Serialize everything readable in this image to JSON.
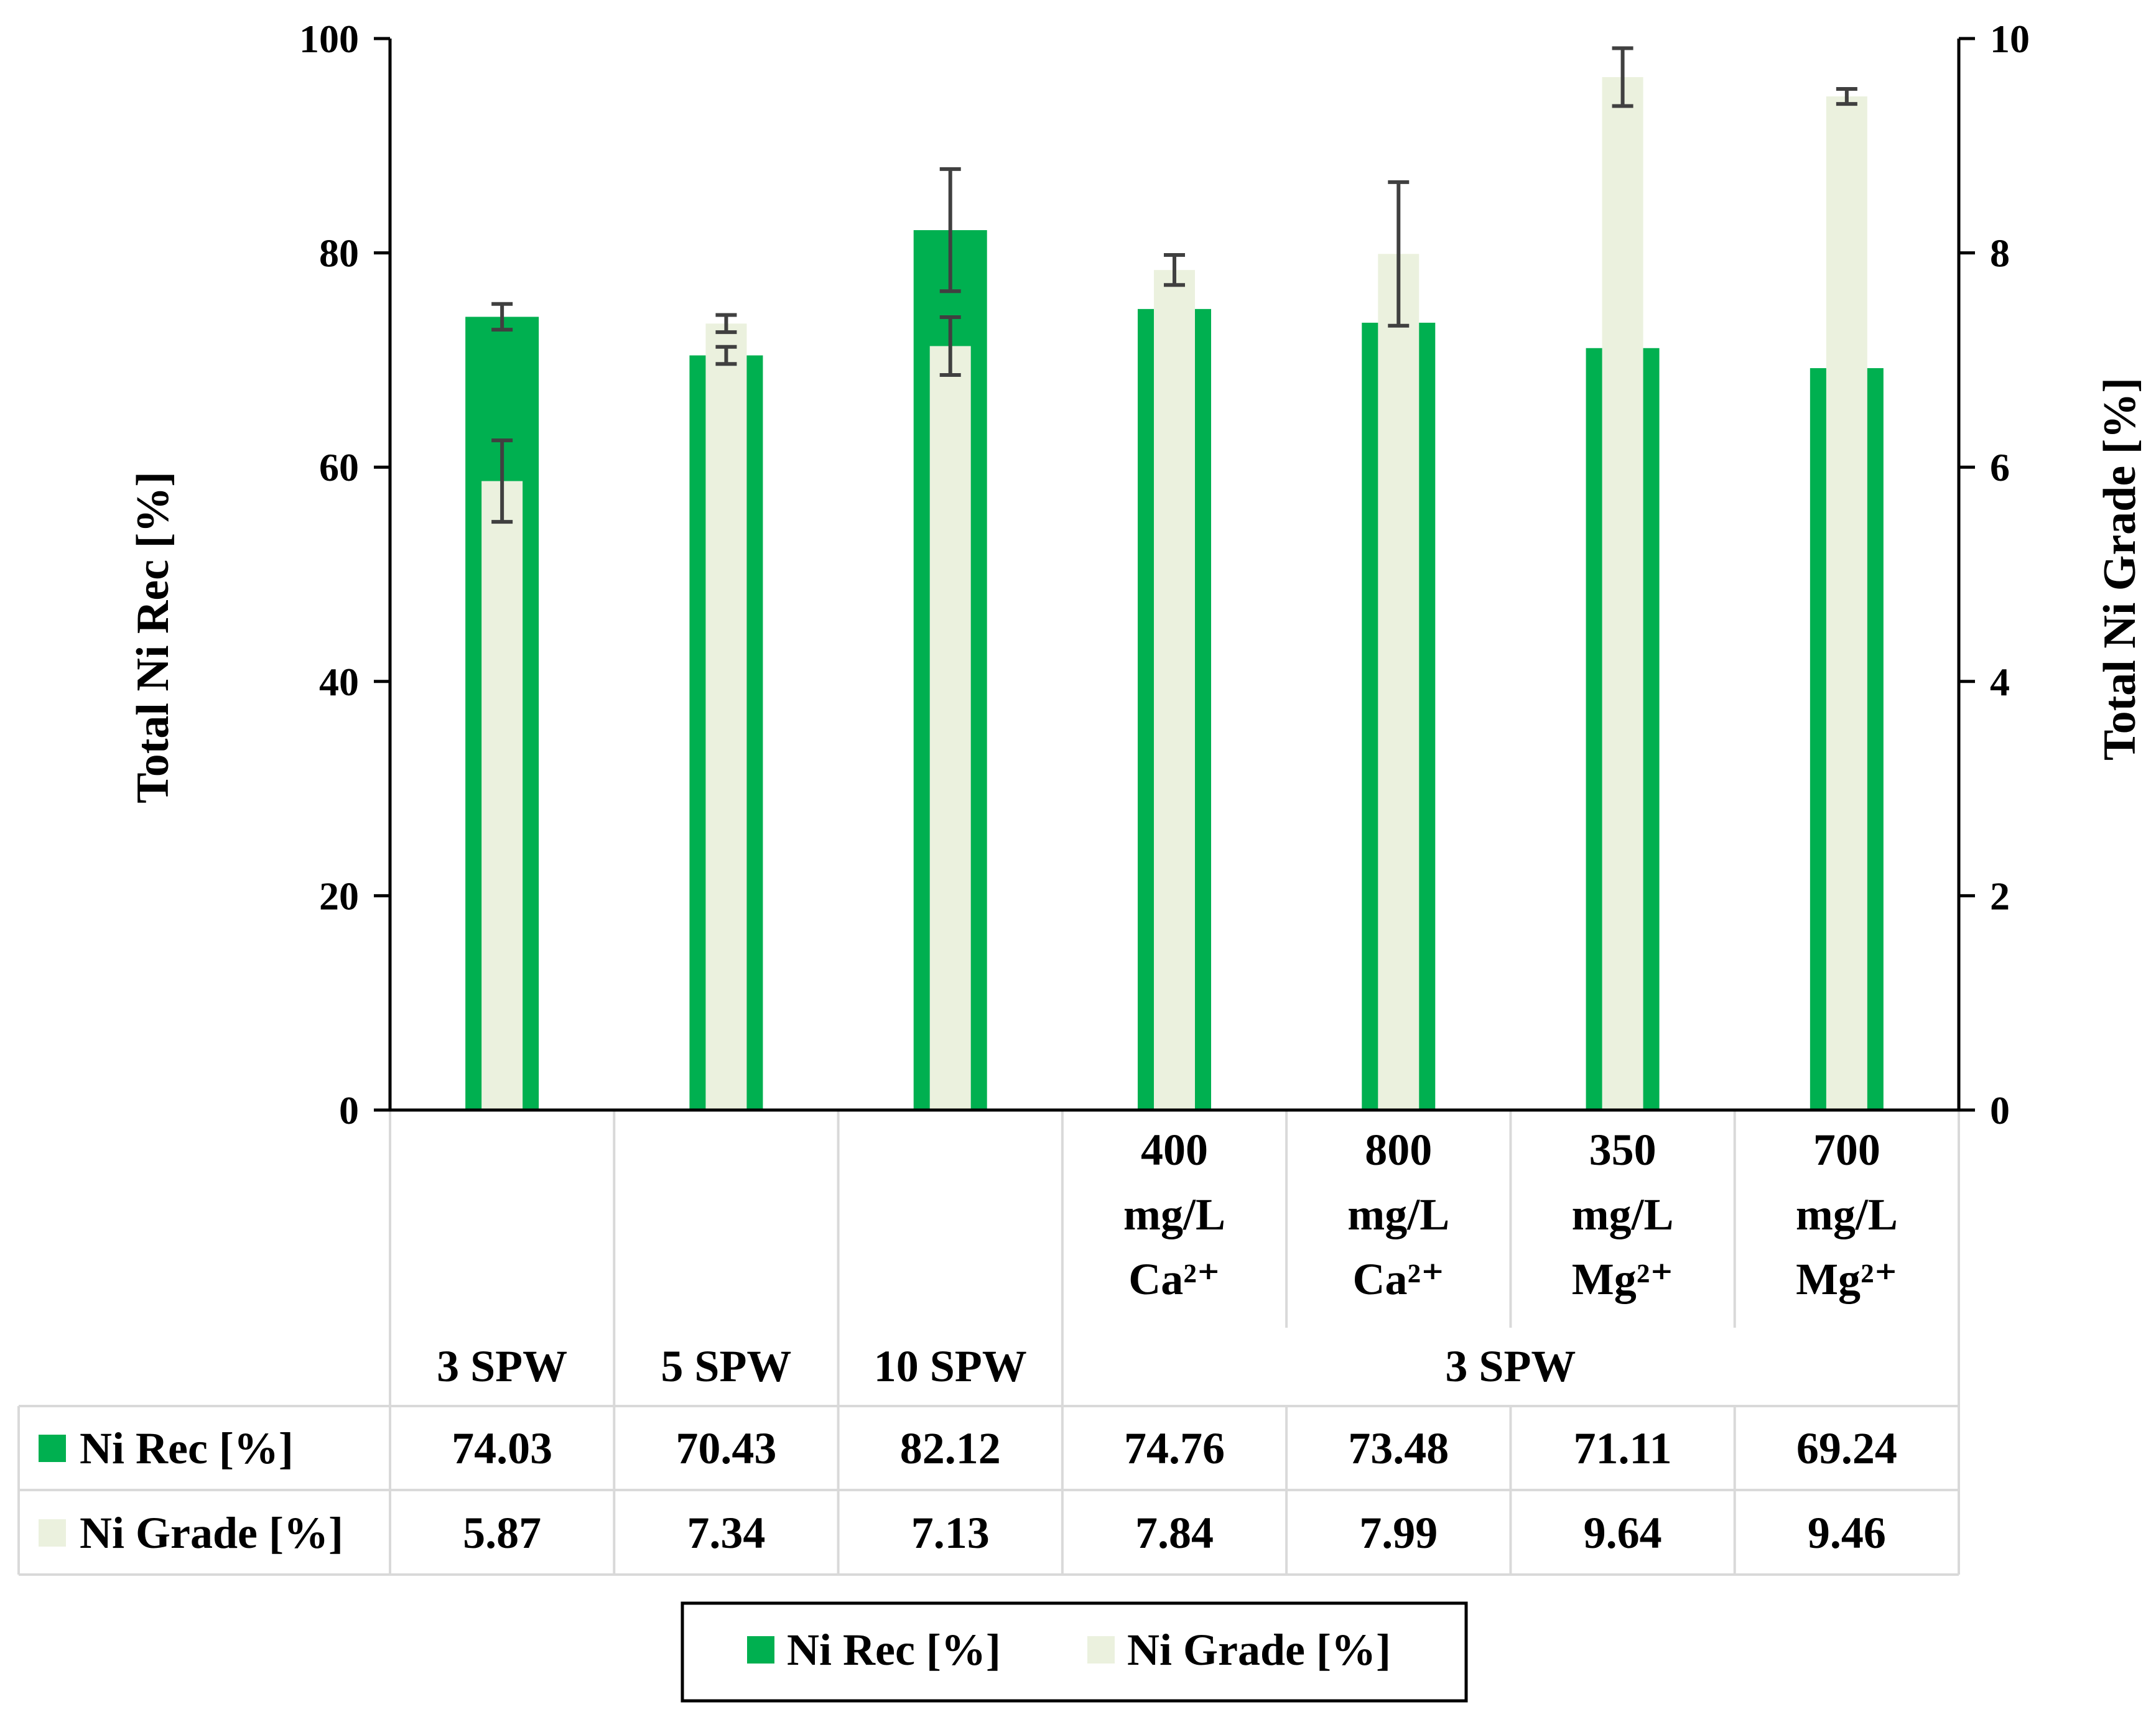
{
  "chart_data": {
    "type": "bar",
    "categories": [
      "3 SPW",
      "5 SPW",
      "10 SPW",
      "400 mg/L Ca²⁺",
      "800 mg/L Ca²⁺",
      "350 mg/L Mg²⁺",
      "700 mg/L Mg²⁺"
    ],
    "category_lines": [
      [
        "",
        "",
        "",
        "3 SPW"
      ],
      [
        "",
        "",
        "",
        "5 SPW"
      ],
      [
        "",
        "",
        "",
        "10 SPW"
      ],
      [
        "400",
        "mg/L",
        "Ca²⁺",
        ""
      ],
      [
        "800",
        "mg/L",
        "Ca²⁺",
        ""
      ],
      [
        "350",
        "mg/L",
        "Mg²⁺",
        ""
      ],
      [
        "700",
        "mg/L",
        "Mg²⁺",
        ""
      ]
    ],
    "group_label": "3 SPW",
    "series": [
      {
        "name": "Ni Rec [%]",
        "axis": "left",
        "color": "#00b050",
        "values": [
          74.03,
          70.43,
          82.12,
          74.76,
          73.48,
          71.11,
          69.24
        ],
        "error": [
          1.2,
          0.8,
          5.7,
          0,
          0,
          0,
          0
        ],
        "labels": [
          "74.03",
          "70.43",
          "82.12",
          "74.76",
          "73.48",
          "71.11",
          "69.24"
        ]
      },
      {
        "name": "Ni Grade [%]",
        "axis": "right",
        "color": "#ebf1de",
        "values": [
          5.87,
          7.34,
          7.13,
          7.84,
          7.99,
          9.64,
          9.46
        ],
        "error": [
          0.38,
          0.08,
          0.27,
          0.14,
          0.67,
          0.27,
          0.07
        ],
        "labels": [
          "5.87",
          "7.34",
          "7.13",
          "7.84",
          "7.99",
          "9.64",
          "9.46"
        ]
      }
    ],
    "y_left": {
      "label": "Total Ni Rec [%]",
      "range": [
        0,
        100
      ],
      "ticks": [
        0,
        20,
        40,
        60,
        80,
        100
      ]
    },
    "y_right": {
      "label": "Total Ni Grade [%]",
      "range": [
        0,
        10
      ],
      "ticks": [
        0,
        2,
        4,
        6,
        8,
        10
      ]
    },
    "legend": {
      "position": "bottom",
      "entries": [
        "Ni Rec [%]",
        "Ni Grade [%]"
      ]
    }
  }
}
